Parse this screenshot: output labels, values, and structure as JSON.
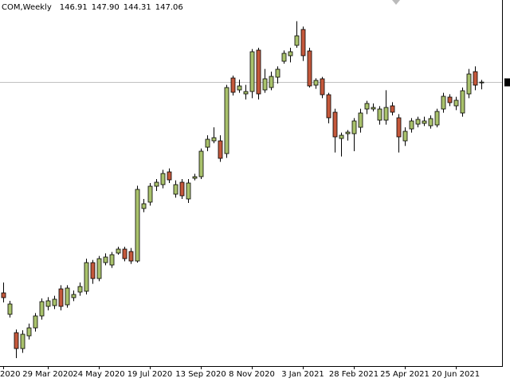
{
  "chart_data": {
    "type": "candlestick",
    "title": "COM,Weekly",
    "header_values": [
      "146.91",
      "147.90",
      "144.31",
      "147.06"
    ],
    "categories": [
      "2020",
      null,
      null,
      null,
      null,
      null,
      null,
      "29 Mar 2020",
      null,
      null,
      null,
      null,
      null,
      null,
      null,
      "24 May 2020",
      null,
      null,
      null,
      null,
      null,
      null,
      null,
      "19 Jul 2020",
      null,
      null,
      null,
      null,
      null,
      null,
      null,
      "13 Sep 2020",
      null,
      null,
      null,
      null,
      null,
      null,
      null,
      "8 Nov 2020",
      null,
      null,
      null,
      null,
      null,
      null,
      null,
      "3 Jan 2021",
      null,
      null,
      null,
      null,
      null,
      null,
      null,
      "28 Feb 2021",
      null,
      null,
      null,
      null,
      null,
      null,
      null,
      "25 Apr 2021",
      null,
      null,
      null,
      null,
      null,
      null,
      null,
      "20 Jun 2021",
      null,
      null,
      null,
      null
    ],
    "open": [
      67.6,
      59.5,
      52.6,
      46.6,
      51.4,
      54.4,
      58.9,
      62.5,
      62.8,
      69.1,
      63.1,
      65.8,
      67.9,
      68.2,
      79,
      73,
      79,
      78.1,
      82.6,
      84.1,
      83.2,
      79.6,
      99.4,
      101.8,
      107.8,
      108.4,
      113.2,
      104.8,
      109.3,
      103,
      110.8,
      111.4,
      122.5,
      124.9,
      124.9,
      120.1,
      148.6,
      144.1,
      142.6,
      143.5,
      159.1,
      144.1,
      145,
      148.9,
      154.9,
      157,
      160.9,
      166.9,
      158.8,
      145.9,
      148.3,
      142.3,
      135.7,
      125.8,
      127.6,
      127.6,
      130,
      136.9,
      136.9,
      132.7,
      132.7,
      138.1,
      133.6,
      124.9,
      129.4,
      131.2,
      131.5,
      130.6,
      130.9,
      136.9,
      141.4,
      138.1,
      135.4,
      142.6,
      151,
      146.91
    ],
    "high": [
      71.5,
      64.6,
      53.8,
      53.5,
      56,
      60,
      65.5,
      66,
      66.5,
      70.5,
      70.5,
      68.5,
      71.5,
      80.5,
      80,
      81.5,
      82.5,
      83,
      85,
      85,
      84.5,
      108,
      103,
      109,
      110.5,
      114,
      114.5,
      110,
      110.5,
      110.5,
      112.5,
      122,
      127,
      130,
      127,
      146,
      149.5,
      148,
      146,
      159.5,
      160,
      152,
      151,
      153,
      159,
      160,
      170,
      168,
      160,
      148.5,
      149,
      143,
      137,
      128,
      129,
      133.5,
      137,
      140,
      139,
      138,
      144,
      139.5,
      135,
      130,
      133.5,
      134,
      134,
      134.5,
      137,
      143,
      142.5,
      141.5,
      145,
      152,
      153,
      147.9
    ],
    "low": [
      64,
      58.3,
      43,
      45,
      50,
      53,
      57.5,
      61,
      61.5,
      61,
      62,
      64.5,
      66.5,
      67,
      71,
      72,
      78,
      77,
      82,
      79.5,
      78.5,
      79,
      98,
      100.5,
      106,
      107,
      109,
      103.5,
      103,
      101.5,
      110,
      110.5,
      121,
      124,
      117,
      118.5,
      142,
      143,
      140.5,
      141,
      140.5,
      143,
      144,
      146.5,
      154,
      154.5,
      160,
      155,
      145,
      144.5,
      141,
      131.5,
      120.5,
      119,
      125,
      121,
      128,
      135,
      136,
      131,
      131,
      134.5,
      120.5,
      123,
      128,
      130,
      130.5,
      129.5,
      130,
      135.5,
      138,
      136.5,
      134,
      141,
      144,
      144.31
    ],
    "close": [
      65.8,
      63.4,
      46.6,
      52,
      54.4,
      58.9,
      64.3,
      64.6,
      65.2,
      62.5,
      69.4,
      67,
      70,
      79,
      73,
      80.5,
      81.1,
      82,
      84.1,
      80.5,
      79.6,
      106.6,
      101.2,
      107.8,
      109.3,
      112.6,
      110.2,
      108.4,
      104.2,
      109,
      111.4,
      121,
      125.5,
      126.1,
      118.3,
      145,
      143.2,
      145.6,
      143.5,
      158.5,
      142.6,
      148.3,
      149.2,
      151.9,
      157.9,
      158.5,
      164.5,
      157,
      145.6,
      147.7,
      142.3,
      133.6,
      126.4,
      127,
      128.2,
      132.4,
      135.4,
      139,
      137.5,
      136.9,
      137.5,
      135.7,
      126.4,
      128.5,
      132.4,
      133,
      132.4,
      133.3,
      136,
      141.7,
      139.3,
      140.2,
      143.8,
      150.1,
      145.9,
      147.06
    ],
    "up_color": "#a9c26c",
    "down_color": "#c4583b",
    "ylim": [
      40,
      178
    ]
  }
}
